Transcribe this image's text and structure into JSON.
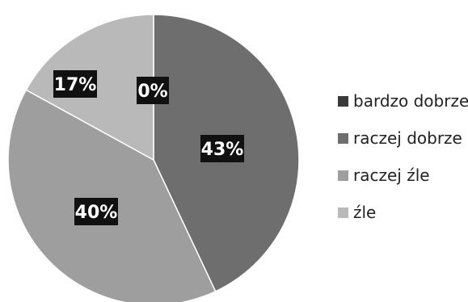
{
  "chart_data": {
    "type": "pie",
    "categories": [
      "bardzo dobrze",
      "raczej dobrze",
      "raczej źle",
      "źle"
    ],
    "values": [
      0,
      43,
      40,
      17
    ],
    "data_labels": [
      "0%",
      "43%",
      "40%",
      "17%"
    ],
    "colors": [
      "#3a3a3a",
      "#6e6e6e",
      "#9e9e9e",
      "#b9b9b9"
    ],
    "label_color": "#ffffff",
    "label_background": "#111111",
    "start_angle": "12 o'clock",
    "direction": "clockwise",
    "legend": {
      "placement": "right",
      "entries": [
        "bardzo dobrze",
        "raczej dobrze",
        "raczej źle",
        "źle"
      ]
    }
  }
}
